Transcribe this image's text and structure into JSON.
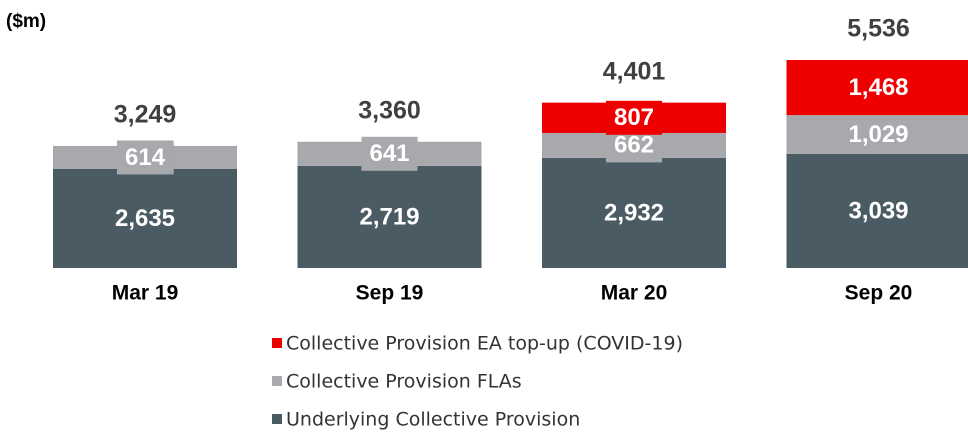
{
  "chart_data": {
    "type": "stacked_bar",
    "y_label": "($m)",
    "categories": [
      "Mar 19",
      "Sep 19",
      "Mar 20",
      "Sep 20"
    ],
    "series": [
      {
        "name": "Underlying Collective Provision",
        "color": "#4b5b64",
        "values": [
          2635,
          2719,
          2932,
          3039
        ],
        "value_labels": [
          "2,635",
          "2,719",
          "2,932",
          "3,039"
        ]
      },
      {
        "name": "Collective Provision FLAs",
        "color": "#a7a9ac",
        "values": [
          614,
          641,
          662,
          1029
        ],
        "value_labels": [
          "614",
          "641",
          "662",
          "1,029"
        ]
      },
      {
        "name": "Collective Provision EA top-up (COVID-19)",
        "color": "#ee0000",
        "values": [
          null,
          null,
          807,
          1468
        ],
        "value_labels": [
          null,
          null,
          "807",
          "1,468"
        ]
      }
    ],
    "totals": [
      3249,
      3360,
      4401,
      5536
    ],
    "total_labels": [
      "3,249",
      "3,360",
      "4,401",
      "5,536"
    ]
  }
}
